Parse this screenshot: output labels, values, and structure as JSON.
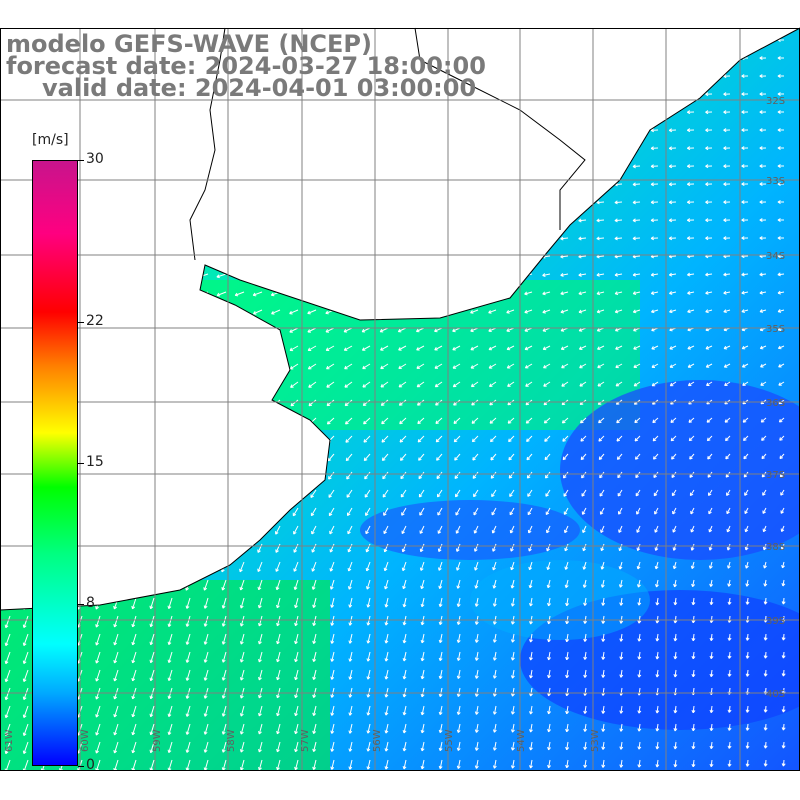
{
  "map": {
    "title_line1": "modelo GEFS-WAVE (NCEP)",
    "title_line2": "forecast date: 2024-03-27 18:00:00",
    "title_line3": "valid date: 2024-04-01 03:00:00",
    "field": "wind speed with direction arrows",
    "lat_labels": [
      "32S",
      "33S",
      "34S",
      "35S",
      "36S",
      "37S",
      "38S",
      "39S",
      "40S"
    ],
    "lon_labels": [
      "61W",
      "60W",
      "59W",
      "58W",
      "57W",
      "56W",
      "55W",
      "54W",
      "53W"
    ]
  },
  "colorbar": {
    "unit": "[m/s]",
    "ticks": [
      "30",
      "22",
      "15",
      "8",
      "0"
    ],
    "tick_values": [
      30,
      22,
      15,
      8,
      0
    ],
    "min": 0,
    "max": 30,
    "colors": [
      "#0000ff",
      "#00aaff",
      "#00ffff",
      "#00ff80",
      "#00ff00",
      "#ffff00",
      "#ff8000",
      "#ff0000",
      "#ff0080",
      "#c8148c"
    ]
  },
  "style": {
    "land_color": "#ffffff",
    "grid_color": "#808080",
    "arrow_color": "#ffffff",
    "title_color": "#7a7a7a"
  }
}
